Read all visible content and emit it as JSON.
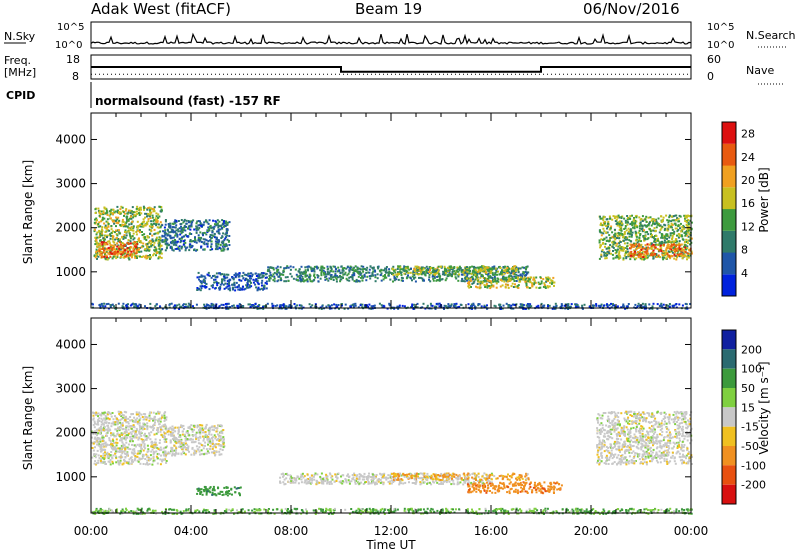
{
  "header": {
    "station": "Adak West (fitACF)",
    "beam": "Beam 19",
    "date": "06/Nov/2016"
  },
  "panels": {
    "sky": {
      "left_label": "N.Sky",
      "right_label": "N.Search",
      "ticks_left": [
        "10^5",
        "10^0"
      ],
      "ticks_right": [
        "10^5",
        "10^0"
      ]
    },
    "freq": {
      "left_label_1": "Freq.",
      "left_label_2": "[MHz]",
      "right_label": "Nave",
      "ticks_left": [
        "18",
        "8"
      ],
      "ticks_right": [
        "60",
        "0"
      ]
    },
    "cpid": {
      "left_label": "CPID",
      "text": "normalsound (fast) -157 RF"
    },
    "power": {
      "ylabel": "Slant Range [km]",
      "cbar_label": "Power [dB]"
    },
    "velocity": {
      "ylabel": "Slant Range [km]",
      "cbar_label": "Velocity [m s⁻¹]"
    }
  },
  "xaxis": {
    "label": "Time UT",
    "ticks": [
      "00:00",
      "04:00",
      "08:00",
      "12:00",
      "16:00",
      "20:00",
      "00:00"
    ]
  },
  "colors": {
    "power_scale": [
      "#0022dd",
      "#1f56a8",
      "#2f7a6a",
      "#3d9a3e",
      "#c8c020",
      "#f0a020",
      "#e85a10",
      "#dd1010"
    ],
    "velocity_scale": [
      "#1020a0",
      "#2a6a70",
      "#3c9a3c",
      "#7fd040",
      "#c8c8c8",
      "#f0c020",
      "#f09020",
      "#e85010",
      "#d81010"
    ]
  },
  "chart_data": [
    {
      "type": "line",
      "name_key": "sky",
      "x_range_hours": [
        0,
        24
      ],
      "y_range": [
        0,
        100000
      ],
      "series": [
        {
          "name": "N.Sky",
          "values_description_hours": [
            0,
            24
          ]
        }
      ]
    },
    {
      "type": "line",
      "name_key": "frequency",
      "x_range_hours": [
        0,
        24
      ],
      "ylim": [
        8,
        18
      ],
      "series": [
        {
          "name": "Freq.",
          "x": [
            0,
            10,
            10,
            18,
            18,
            24
          ],
          "y": [
            13,
            13,
            11,
            11,
            13,
            13
          ]
        },
        {
          "name": "Nave",
          "x": [
            0,
            24
          ],
          "y": [
            10,
            10
          ]
        }
      ]
    },
    {
      "type": "heatmap",
      "name_key": "power",
      "xlabel": "Time UT",
      "ylabel": "Slant Range [km]",
      "x_range_hours": [
        0,
        24
      ],
      "ylim": [
        180,
        4600
      ],
      "y_ticks": [
        1000,
        2000,
        3000,
        4000
      ],
      "colorbar": {
        "label": "Power [dB]",
        "ticks": [
          4,
          8,
          12,
          16,
          20,
          24,
          28
        ],
        "range": [
          0,
          30
        ]
      },
      "regions": [
        {
          "t": [
            0.1,
            2.8
          ],
          "r": [
            1300,
            2500
          ],
          "level": 15
        },
        {
          "t": [
            0.3,
            1.8
          ],
          "r": [
            1350,
            1700
          ],
          "level": 24
        },
        {
          "t": [
            2.8,
            5.5
          ],
          "r": [
            1500,
            2200
          ],
          "level": 8
        },
        {
          "t": [
            4.2,
            7.0
          ],
          "r": [
            600,
            1000
          ],
          "level": 6
        },
        {
          "t": [
            7.0,
            17.5
          ],
          "r": [
            800,
            1150
          ],
          "level": 10
        },
        {
          "t": [
            12.0,
            17.0
          ],
          "r": [
            950,
            1150
          ],
          "level": 15
        },
        {
          "t": [
            15.0,
            18.5
          ],
          "r": [
            650,
            900
          ],
          "level": 16
        },
        {
          "t": [
            20.3,
            24.0
          ],
          "r": [
            1300,
            2300
          ],
          "level": 14
        },
        {
          "t": [
            21.5,
            24.0
          ],
          "r": [
            1350,
            1650
          ],
          "level": 23
        },
        {
          "t": [
            0.0,
            24.0
          ],
          "r": [
            180,
            300
          ],
          "level": 6
        }
      ]
    },
    {
      "type": "heatmap",
      "name_key": "velocity",
      "xlabel": "Time UT",
      "ylabel": "Slant Range [km]",
      "x_range_hours": [
        0,
        24
      ],
      "ylim": [
        180,
        4600
      ],
      "y_ticks": [
        1000,
        2000,
        3000,
        4000
      ],
      "colorbar": {
        "label": "Velocity [m s⁻¹]",
        "ticks": [
          200,
          100,
          50,
          15,
          -15,
          -50,
          -100,
          -200
        ]
      },
      "regions": [
        {
          "t": [
            0.0,
            3.0
          ],
          "r": [
            1300,
            2500
          ],
          "v": 0
        },
        {
          "t": [
            3.0,
            5.3
          ],
          "r": [
            1500,
            2200
          ],
          "v": 0
        },
        {
          "t": [
            4.2,
            6.0
          ],
          "r": [
            600,
            800
          ],
          "v": 60
        },
        {
          "t": [
            7.5,
            16.0
          ],
          "r": [
            850,
            1100
          ],
          "v": 0
        },
        {
          "t": [
            12.0,
            17.5
          ],
          "r": [
            950,
            1100
          ],
          "v": -30
        },
        {
          "t": [
            15.0,
            18.8
          ],
          "r": [
            650,
            900
          ],
          "v": -60
        },
        {
          "t": [
            20.2,
            24.0
          ],
          "r": [
            1300,
            2500
          ],
          "v": 0
        },
        {
          "t": [
            0.0,
            24.0
          ],
          "r": [
            180,
            300
          ],
          "v": 30
        }
      ]
    }
  ]
}
